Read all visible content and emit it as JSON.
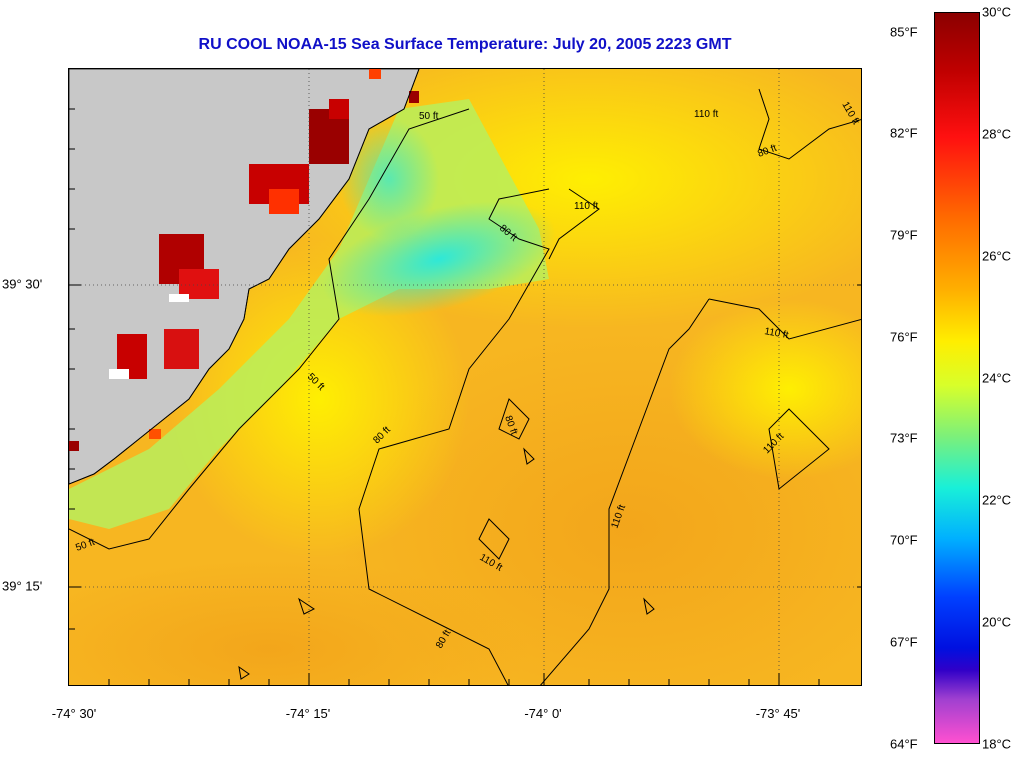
{
  "title": "RU COOL  NOAA-15  Sea Surface Temperature:  July 20, 2005 2223 GMT",
  "longitude_labels": [
    "-74° 30'",
    "-74° 15'",
    "-74° 0'",
    "-73° 45'"
  ],
  "latitude_labels": [
    "39° 30'",
    "39° 15'"
  ],
  "colorbar": {
    "fahrenheit": [
      "85°F",
      "82°F",
      "79°F",
      "76°F",
      "73°F",
      "70°F",
      "67°F",
      "64°F"
    ],
    "celsius": [
      "30°C",
      "28°C",
      "26°C",
      "24°C",
      "22°C",
      "20°C",
      "18°C"
    ],
    "range_c": [
      18,
      30
    ]
  },
  "contours": {
    "labels": [
      "50 ft",
      "80 ft",
      "110 ft",
      "110 ft",
      "80 ft",
      "50 ft",
      "110 ft",
      "80 ft",
      "110 ft",
      "110 ft",
      "50 ft",
      "110 ft",
      "80 ft",
      "110 ft",
      "80 ft"
    ]
  },
  "colors": {
    "title": "#1010c8",
    "land": "#c8c8c8",
    "ocean_warm": "#f7b21c",
    "ocean_mid": "#ffe600",
    "nearshore_cool": "#46e6c8",
    "estuary_hot": "#c80000"
  }
}
